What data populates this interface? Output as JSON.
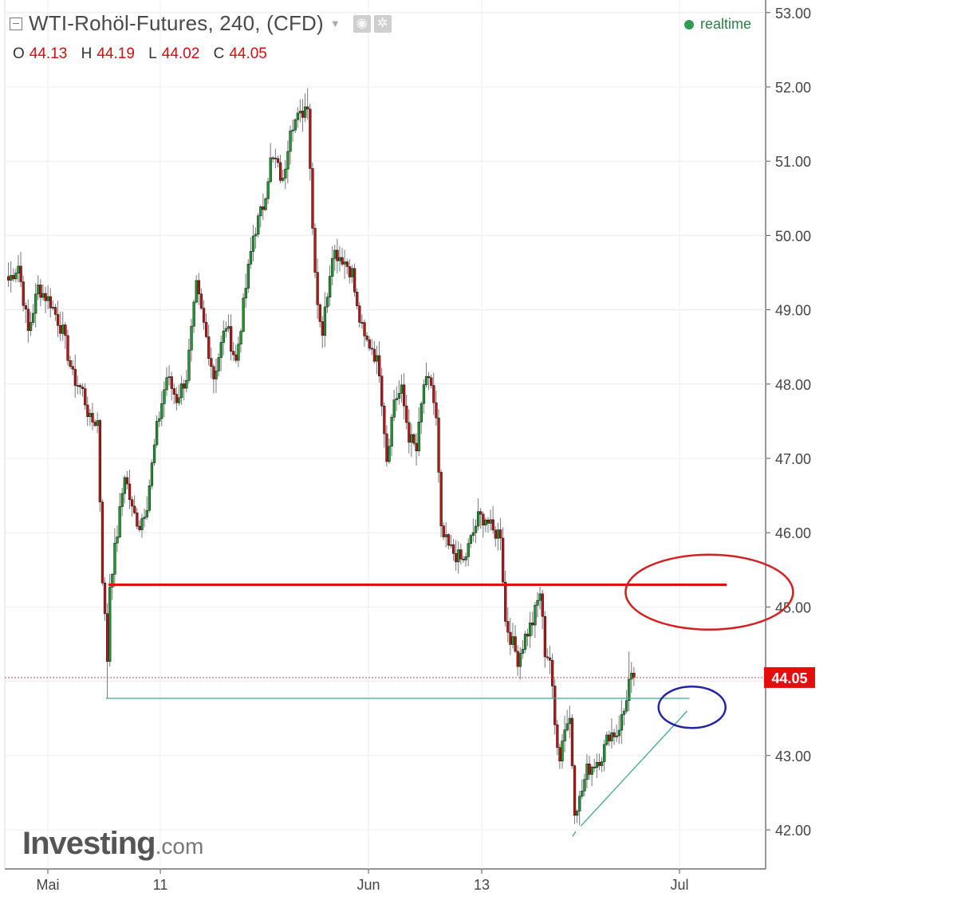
{
  "header": {
    "title": "WTI-Rohöl-Futures, 240, (CFD)",
    "dropdown_icon": "caret-down-icon",
    "tool_icons": [
      "eye-icon",
      "gear-icon"
    ],
    "ohlc": {
      "o_label": "O",
      "o": "44.13",
      "h_label": "H",
      "h": "44.19",
      "l_label": "L",
      "l": "44.02",
      "c_label": "C",
      "c": "44.05"
    },
    "status": "realtime",
    "status_color": "#2e9a56"
  },
  "logo": {
    "brand": "Investing",
    "suffix": ".com"
  },
  "colors": {
    "up": "#1a9e2c",
    "down": "#c41111",
    "wick": "#777777",
    "support": "#e01010",
    "trend": "#3fa98a",
    "ellipse_red": "#d42020",
    "ellipse_blue": "#2222aa"
  },
  "chart_data": {
    "type": "candlestick",
    "interval": "240",
    "y_ticks": [
      "53.00",
      "52.00",
      "51.00",
      "50.00",
      "49.00",
      "48.00",
      "47.00",
      "46.00",
      "45.00",
      "44.00",
      "43.00",
      "42.00"
    ],
    "x_ticks": [
      "Mai",
      "11",
      "Jun",
      "13",
      "Jul"
    ],
    "last_price": 44.05,
    "ylim": [
      41.5,
      53.1
    ],
    "grid": true,
    "path_keypoints": [
      {
        "i": 0,
        "p": 49.4
      },
      {
        "i": 4,
        "p": 49.6
      },
      {
        "i": 8,
        "p": 48.7
      },
      {
        "i": 12,
        "p": 49.3
      },
      {
        "i": 17,
        "p": 49.1
      },
      {
        "i": 22,
        "p": 48.7
      },
      {
        "i": 26,
        "p": 48.1
      },
      {
        "i": 30,
        "p": 47.9
      },
      {
        "i": 33,
        "p": 47.5
      },
      {
        "i": 36,
        "p": 47.5
      },
      {
        "i": 38,
        "p": 45.4
      },
      {
        "i": 40,
        "p": 44.3
      },
      {
        "i": 41,
        "p": 45.3
      },
      {
        "i": 44,
        "p": 46.0
      },
      {
        "i": 47,
        "p": 46.8
      },
      {
        "i": 50,
        "p": 46.3
      },
      {
        "i": 53,
        "p": 46.1
      },
      {
        "i": 56,
        "p": 46.4
      },
      {
        "i": 60,
        "p": 47.4
      },
      {
        "i": 64,
        "p": 48.1
      },
      {
        "i": 68,
        "p": 47.8
      },
      {
        "i": 72,
        "p": 48.1
      },
      {
        "i": 76,
        "p": 49.3
      },
      {
        "i": 79,
        "p": 48.8
      },
      {
        "i": 83,
        "p": 48.1
      },
      {
        "i": 88,
        "p": 48.8
      },
      {
        "i": 92,
        "p": 48.3
      },
      {
        "i": 96,
        "p": 49.3
      },
      {
        "i": 99,
        "p": 50.0
      },
      {
        "i": 103,
        "p": 50.4
      },
      {
        "i": 106,
        "p": 51.0
      },
      {
        "i": 108,
        "p": 51.0
      },
      {
        "i": 111,
        "p": 50.7
      },
      {
        "i": 114,
        "p": 51.5
      },
      {
        "i": 118,
        "p": 51.6
      },
      {
        "i": 121,
        "p": 51.8
      },
      {
        "i": 123,
        "p": 50.1
      },
      {
        "i": 125,
        "p": 49.1
      },
      {
        "i": 127,
        "p": 48.7
      },
      {
        "i": 131,
        "p": 49.8
      },
      {
        "i": 135,
        "p": 49.7
      },
      {
        "i": 139,
        "p": 49.5
      },
      {
        "i": 141,
        "p": 49.0
      },
      {
        "i": 144,
        "p": 48.6
      },
      {
        "i": 147,
        "p": 48.5
      },
      {
        "i": 150,
        "p": 48.2
      },
      {
        "i": 153,
        "p": 47.0
      },
      {
        "i": 156,
        "p": 47.8
      },
      {
        "i": 159,
        "p": 47.9
      },
      {
        "i": 162,
        "p": 47.3
      },
      {
        "i": 165,
        "p": 47.1
      },
      {
        "i": 168,
        "p": 48.0
      },
      {
        "i": 171,
        "p": 48.0
      },
      {
        "i": 173,
        "p": 47.5
      },
      {
        "i": 175,
        "p": 46.0
      },
      {
        "i": 178,
        "p": 45.8
      },
      {
        "i": 181,
        "p": 45.7
      },
      {
        "i": 184,
        "p": 45.6
      },
      {
        "i": 187,
        "p": 45.9
      },
      {
        "i": 190,
        "p": 46.2
      },
      {
        "i": 193,
        "p": 46.2
      },
      {
        "i": 196,
        "p": 46.0
      },
      {
        "i": 199,
        "p": 46.0
      },
      {
        "i": 201,
        "p": 44.8
      },
      {
        "i": 203,
        "p": 44.6
      },
      {
        "i": 206,
        "p": 44.3
      },
      {
        "i": 209,
        "p": 44.6
      },
      {
        "i": 212,
        "p": 44.8
      },
      {
        "i": 215,
        "p": 45.2
      },
      {
        "i": 217,
        "p": 44.4
      },
      {
        "i": 219,
        "p": 44.3
      },
      {
        "i": 221,
        "p": 43.4
      },
      {
        "i": 223,
        "p": 43.0
      },
      {
        "i": 225,
        "p": 43.4
      },
      {
        "i": 227,
        "p": 43.5
      },
      {
        "i": 229,
        "p": 42.3
      },
      {
        "i": 231,
        "p": 42.4
      },
      {
        "i": 234,
        "p": 42.8
      },
      {
        "i": 237,
        "p": 42.9
      },
      {
        "i": 240,
        "p": 43.0
      },
      {
        "i": 243,
        "p": 43.3
      },
      {
        "i": 246,
        "p": 43.3
      },
      {
        "i": 249,
        "p": 43.6
      },
      {
        "i": 251,
        "p": 44.0
      },
      {
        "i": 253,
        "p": 44.05
      }
    ],
    "extremes": [
      {
        "i": 40,
        "low": 43.77
      },
      {
        "i": 41,
        "low": 44.2
      },
      {
        "i": 121,
        "high": 51.98
      },
      {
        "i": 229,
        "low": 42.08
      },
      {
        "i": 251,
        "high": 44.4
      }
    ],
    "annotations": {
      "support_line": {
        "from_i": 41,
        "to_i": 291,
        "price": 45.3
      },
      "green_line": {
        "from_i": 40,
        "to_i": 276,
        "price": 43.77
      },
      "trend_line": {
        "from_i": 232,
        "from_p": 42.05,
        "to_i": 275,
        "to_p": 43.6
      },
      "red_ellipse": {
        "center_i": 284,
        "center_p": 45.2
      },
      "blue_ellipse": {
        "center_i": 277,
        "center_p": 43.65
      }
    }
  }
}
